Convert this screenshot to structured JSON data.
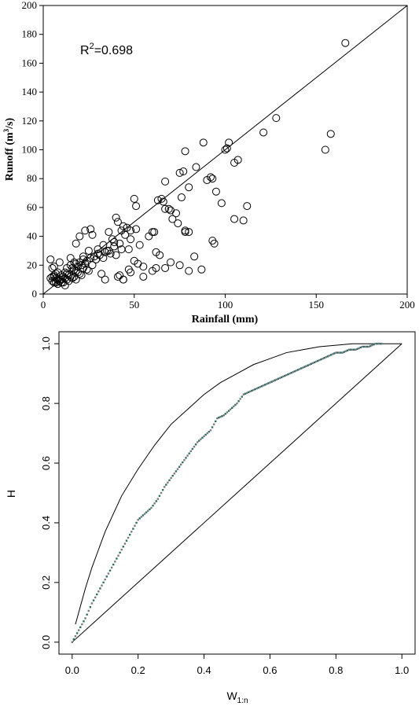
{
  "chart_data": [
    {
      "type": "scatter",
      "title": "",
      "xlabel": "Rainfall (mm)",
      "ylabel": {
        "prefix": "Runoff (m",
        "sup": "3",
        "suffix": "/s)"
      },
      "annotation": {
        "prefix": "R",
        "sup": "2",
        "suffix": "=0.698"
      },
      "xlim": [
        0,
        200
      ],
      "ylim": [
        0,
        200
      ],
      "xticks": [
        "0",
        "50",
        "100",
        "150",
        "200"
      ],
      "yticks": [
        "0",
        "20",
        "40",
        "60",
        "80",
        "100",
        "120",
        "140",
        "160",
        "180",
        "200"
      ],
      "grid": false,
      "fit_line": [
        [
          0,
          0
        ],
        [
          200,
          200
        ]
      ],
      "marker": "open-circle",
      "x": [
        166,
        100,
        101,
        128,
        121,
        102,
        107,
        105,
        88,
        78,
        155,
        158,
        77,
        84,
        93,
        95,
        90,
        92,
        75,
        80,
        67,
        69,
        71,
        76,
        63,
        65,
        98,
        112,
        110,
        105,
        93,
        94,
        78,
        80,
        83,
        67,
        70,
        73,
        74,
        66,
        50,
        51,
        61,
        51,
        48,
        53,
        58,
        60,
        62,
        45,
        43,
        40,
        41,
        44,
        46,
        48,
        38,
        39,
        42,
        43,
        35,
        36,
        39,
        40,
        30,
        33,
        34,
        37,
        25,
        28,
        29,
        31,
        33,
        20,
        22,
        23,
        24,
        26,
        27,
        18,
        19,
        21,
        22,
        24,
        25,
        15,
        16,
        17,
        18,
        19,
        20,
        21,
        12,
        13,
        14,
        15,
        16,
        17,
        18,
        10,
        11,
        12,
        13,
        14,
        6,
        7,
        8,
        9,
        10,
        11,
        5,
        6,
        7,
        8,
        9,
        4,
        5,
        6,
        7,
        8,
        5,
        6,
        4,
        9,
        18,
        20,
        23,
        27,
        30,
        32,
        34,
        42,
        44,
        47,
        50,
        55,
        52,
        60,
        70,
        64,
        67,
        48,
        55,
        62,
        75,
        80,
        87,
        78,
        13,
        17,
        22,
        26,
        36,
        41,
        15,
        44,
        47,
        10,
        12
      ],
      "y": [
        174,
        100,
        101,
        122,
        112,
        105,
        93,
        91,
        105,
        99,
        100,
        111,
        85,
        88,
        80,
        71,
        79,
        81,
        84,
        74,
        78,
        59,
        52,
        67,
        65,
        66,
        63,
        61,
        51,
        52,
        37,
        35,
        44,
        43,
        26,
        59,
        58,
        56,
        49,
        64,
        66,
        61,
        43,
        45,
        38,
        34,
        40,
        43,
        29,
        41,
        44,
        53,
        50,
        47,
        46,
        44,
        38,
        36,
        35,
        31,
        30,
        30,
        33,
        27,
        31,
        34,
        29,
        28,
        30,
        26,
        24,
        27,
        25,
        22,
        24,
        21,
        23,
        25,
        20,
        21,
        19,
        20,
        18,
        17,
        16,
        20,
        18,
        17,
        16,
        15,
        14,
        13,
        15,
        14,
        13,
        12,
        11,
        12,
        10,
        13,
        12,
        11,
        10,
        9,
        12,
        11,
        10,
        9,
        10,
        8,
        9,
        8,
        8,
        7,
        10,
        11,
        12,
        13,
        14,
        15,
        18,
        19,
        24,
        22,
        35,
        40,
        44,
        41,
        28,
        14,
        10,
        13,
        10,
        31,
        23,
        19,
        21,
        16,
        22,
        27,
        18,
        15,
        12,
        18,
        20,
        16,
        17,
        43,
        18,
        22,
        26,
        45,
        43,
        12,
        25,
        10,
        17,
        8,
        6
      ]
    },
    {
      "type": "line",
      "title": "",
      "xlabel": {
        "main": "W",
        "sub": "1:n"
      },
      "ylabel": "H",
      "xlim": [
        -0.04,
        1.04
      ],
      "ylim": [
        -0.04,
        1.04
      ],
      "xticks": [
        "0.0",
        "0.2",
        "0.4",
        "0.6",
        "0.8",
        "1.0"
      ],
      "yticks": [
        "0.0",
        "0.2",
        "0.4",
        "0.6",
        "0.8",
        "1.0"
      ],
      "grid": false,
      "series": [
        {
          "style": "solid",
          "x": [
            0.01,
            0.02,
            0.04,
            0.06,
            0.08,
            0.1,
            0.15,
            0.2,
            0.25,
            0.3,
            0.35,
            0.4,
            0.45,
            0.5,
            0.55,
            0.6,
            0.65,
            0.7,
            0.75,
            0.8,
            0.85,
            0.9,
            0.95,
            1.0
          ],
          "y": [
            0.06,
            0.1,
            0.18,
            0.25,
            0.31,
            0.37,
            0.49,
            0.58,
            0.66,
            0.73,
            0.78,
            0.83,
            0.87,
            0.9,
            0.93,
            0.95,
            0.97,
            0.98,
            0.99,
            0.995,
            1.0,
            1.0,
            1.0,
            1.0
          ]
        },
        {
          "style": "solid",
          "x": [
            0,
            1
          ],
          "y": [
            0,
            1
          ]
        },
        {
          "style": "dotted",
          "x": [
            0.0,
            0.02,
            0.04,
            0.06,
            0.08,
            0.1,
            0.12,
            0.14,
            0.16,
            0.18,
            0.2,
            0.22,
            0.24,
            0.26,
            0.28,
            0.3,
            0.32,
            0.34,
            0.36,
            0.38,
            0.4,
            0.42,
            0.44,
            0.46,
            0.48,
            0.5,
            0.52,
            0.54,
            0.56,
            0.58,
            0.6,
            0.62,
            0.64,
            0.66,
            0.68,
            0.7,
            0.72,
            0.74,
            0.76,
            0.78,
            0.8,
            0.82,
            0.84,
            0.86,
            0.88,
            0.9,
            0.92,
            0.94
          ],
          "y": [
            0.0,
            0.04,
            0.08,
            0.13,
            0.17,
            0.21,
            0.25,
            0.29,
            0.33,
            0.37,
            0.41,
            0.43,
            0.45,
            0.48,
            0.52,
            0.55,
            0.58,
            0.61,
            0.64,
            0.67,
            0.69,
            0.71,
            0.75,
            0.76,
            0.78,
            0.8,
            0.83,
            0.84,
            0.85,
            0.86,
            0.87,
            0.88,
            0.89,
            0.9,
            0.91,
            0.92,
            0.93,
            0.94,
            0.95,
            0.96,
            0.97,
            0.97,
            0.98,
            0.98,
            0.99,
            0.99,
            1.0,
            1.0
          ]
        }
      ]
    }
  ]
}
